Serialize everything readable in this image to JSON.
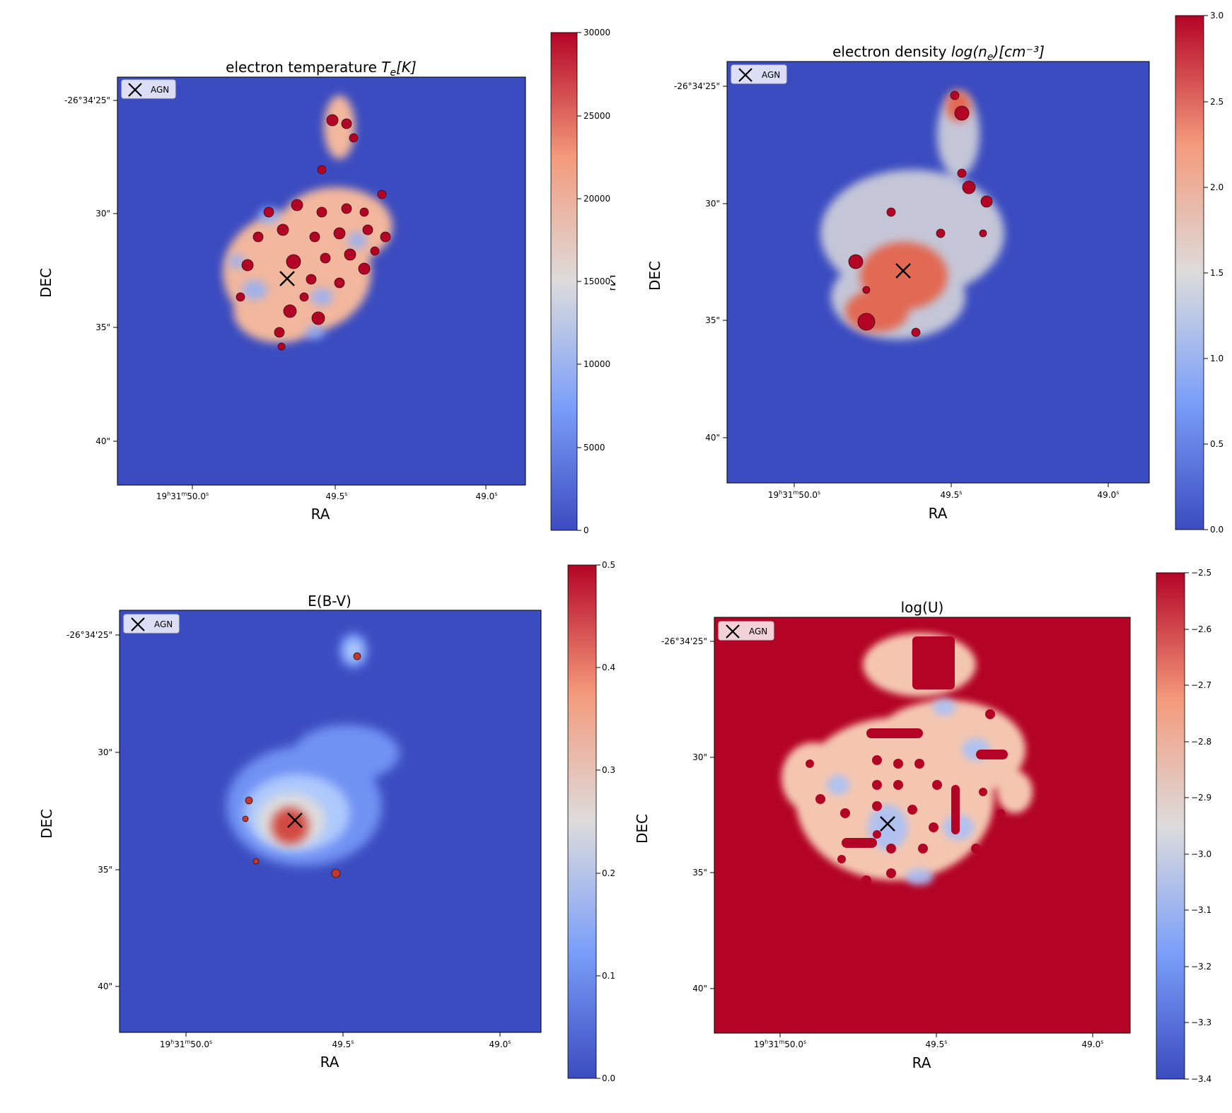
{
  "chart_data": [
    {
      "type": "heatmap",
      "title_main": "electron temperature ",
      "title_math": "T",
      "title_sub": "e",
      "title_tail": "[K]",
      "xlabel": "RA",
      "ylabel": "DEC",
      "x_ticks": [
        {
          "main": "19",
          "sup1": "h",
          "mid": "31",
          "sup2": "m",
          "tail": "50.0",
          "sup3": "s"
        },
        {
          "main": "",
          "sup1": "",
          "mid": "",
          "sup2": "",
          "tail": "49.5",
          "sup3": "s"
        },
        {
          "main": "",
          "sup1": "",
          "mid": "",
          "sup2": "",
          "tail": "49.0",
          "sup3": "s"
        }
      ],
      "y_ticks": [
        "-26°34'25\"",
        "30\"",
        "35\"",
        "40\""
      ],
      "legend_label": "AGN",
      "colorbar_ticks": [
        "0",
        "5000",
        "10000",
        "15000",
        "20000",
        "25000",
        "30000"
      ],
      "colorbar_label": "[K]",
      "background": "#3b4cc0",
      "blob_base": "#f2b79c",
      "blob_hot": "#b40426"
    },
    {
      "type": "heatmap",
      "title_main": "electron density ",
      "title_math": "log(n",
      "title_sub": "e",
      "title_tail": ")[cm⁻³]",
      "xlabel": "RA",
      "ylabel": "DEC",
      "x_ticks": [
        {
          "main": "19",
          "sup1": "h",
          "mid": "31",
          "sup2": "m",
          "tail": "50.0",
          "sup3": "s"
        },
        {
          "main": "",
          "sup1": "",
          "mid": "",
          "sup2": "",
          "tail": "49.5",
          "sup3": "s"
        },
        {
          "main": "",
          "sup1": "",
          "mid": "",
          "sup2": "",
          "tail": "49.0",
          "sup3": "s"
        }
      ],
      "y_ticks": [
        "-26°34'25\"",
        "30\"",
        "35\"",
        "40\""
      ],
      "legend_label": "AGN",
      "colorbar_ticks": [
        "0.0",
        "0.5",
        "1.0",
        "1.5",
        "2.0",
        "2.5",
        "3.0"
      ],
      "colorbar_label": "",
      "background": "#3b4cc0",
      "blob_base": "#e26952",
      "blob_hot": "#b40426"
    },
    {
      "type": "heatmap",
      "title_main": "E(B-V)",
      "title_math": "",
      "title_sub": "",
      "title_tail": "",
      "xlabel": "RA",
      "ylabel": "DEC",
      "x_ticks": [
        {
          "main": "19",
          "sup1": "h",
          "mid": "31",
          "sup2": "m",
          "tail": "50.0",
          "sup3": "s"
        },
        {
          "main": "",
          "sup1": "",
          "mid": "",
          "sup2": "",
          "tail": "49.5",
          "sup3": "s"
        },
        {
          "main": "",
          "sup1": "",
          "mid": "",
          "sup2": "",
          "tail": "49.0",
          "sup3": "s"
        }
      ],
      "y_ticks": [
        "-26°34'25\"",
        "30\"",
        "35\"",
        "40\""
      ],
      "legend_label": "AGN",
      "colorbar_ticks": [
        "0.0",
        "0.1",
        "0.2",
        "0.3",
        "0.4",
        "0.5"
      ],
      "colorbar_label": "",
      "background": "#3b4cc0",
      "blob_base": "#8db0fe",
      "blob_hot": "#d1493f"
    },
    {
      "type": "heatmap",
      "title_main": "log(U)",
      "title_math": "",
      "title_sub": "",
      "title_tail": "",
      "xlabel": "RA",
      "ylabel": "DEC",
      "x_ticks": [
        {
          "main": "19",
          "sup1": "h",
          "mid": "31",
          "sup2": "m",
          "tail": "50.0",
          "sup3": "s"
        },
        {
          "main": "",
          "sup1": "",
          "mid": "",
          "sup2": "",
          "tail": "49.5",
          "sup3": "s"
        },
        {
          "main": "",
          "sup1": "",
          "mid": "",
          "sup2": "",
          "tail": "49.0",
          "sup3": "s"
        }
      ],
      "y_ticks": [
        "-26°34'25\"",
        "30\"",
        "35\"",
        "40\""
      ],
      "legend_label": "AGN",
      "colorbar_ticks": [
        "−3.4",
        "−3.3",
        "−3.2",
        "−3.1",
        "−3.0",
        "−2.9",
        "−2.8",
        "−2.7",
        "−2.6",
        "−2.5"
      ],
      "colorbar_label": "",
      "background": "#b40426",
      "blob_base": "#f4c6b0",
      "blob_hot": "#b40426"
    }
  ],
  "legend_marker": "x-marker-icon"
}
